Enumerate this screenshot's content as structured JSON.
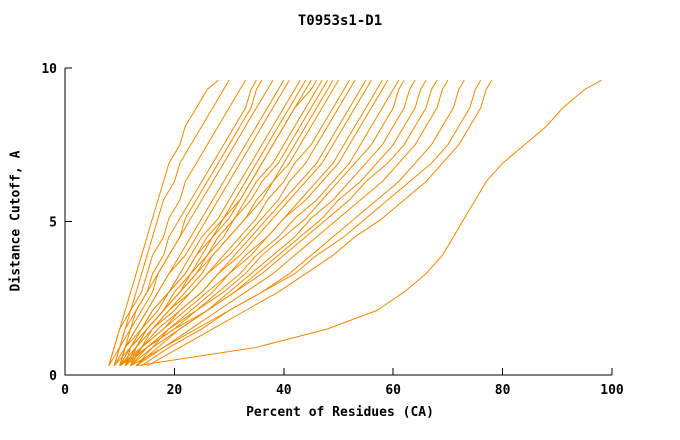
{
  "chart_data": {
    "type": "line",
    "title": "T0953s1-D1",
    "xlabel": "Percent of Residues (CA)",
    "ylabel": "Distance Cutoff, A",
    "xlim": [
      0,
      100
    ],
    "ylim": [
      0,
      10
    ],
    "x_ticks": [
      0,
      20,
      40,
      60,
      80,
      100
    ],
    "y_ticks": [
      0,
      5,
      10
    ],
    "grid": false,
    "legend": "none",
    "line_color": "#ef8a00",
    "axis_color": "#000000",
    "y_levels": [
      0.3,
      0.9,
      1.5,
      2.1,
      2.7,
      3.3,
      3.9,
      4.5,
      5.1,
      5.7,
      6.3,
      6.9,
      7.5,
      8.1,
      8.7,
      9.3,
      9.6
    ],
    "series": [
      [
        8,
        9,
        10,
        11,
        12,
        13,
        14,
        15,
        16,
        17,
        18,
        19,
        21,
        22,
        24,
        26,
        28
      ],
      [
        8,
        9,
        10,
        12,
        13,
        14,
        15,
        16,
        17,
        18,
        20,
        21,
        23,
        25,
        27,
        29,
        30
      ],
      [
        9,
        10,
        11,
        12,
        14,
        15,
        16,
        18,
        19,
        21,
        22,
        24,
        26,
        28,
        30,
        32,
        33
      ],
      [
        9,
        10,
        12,
        13,
        15,
        16,
        18,
        19,
        21,
        23,
        25,
        27,
        29,
        31,
        33,
        34,
        35
      ],
      [
        10,
        11,
        12,
        14,
        16,
        17,
        19,
        21,
        22,
        24,
        26,
        28,
        30,
        32,
        34,
        35,
        36
      ],
      [
        8,
        10,
        11,
        13,
        15,
        17,
        19,
        21,
        23,
        25,
        27,
        29,
        31,
        33,
        35,
        37,
        38
      ],
      [
        10,
        11,
        13,
        15,
        17,
        19,
        21,
        23,
        25,
        27,
        29,
        31,
        33,
        35,
        37,
        39,
        40
      ],
      [
        9,
        11,
        13,
        15,
        17,
        19,
        22,
        24,
        26,
        28,
        30,
        32,
        34,
        36,
        38,
        40,
        41
      ],
      [
        11,
        12,
        14,
        16,
        19,
        21,
        23,
        25,
        28,
        30,
        32,
        34,
        36,
        38,
        40,
        42,
        43
      ],
      [
        10,
        12,
        14,
        17,
        19,
        22,
        24,
        26,
        29,
        31,
        33,
        35,
        37,
        39,
        41,
        43,
        44
      ],
      [
        12,
        13,
        15,
        18,
        20,
        23,
        25,
        27,
        30,
        32,
        34,
        36,
        38,
        40,
        42,
        44,
        45
      ],
      [
        9,
        11,
        14,
        16,
        19,
        22,
        24,
        27,
        29,
        32,
        34,
        36,
        38,
        40,
        42,
        45,
        46
      ],
      [
        11,
        13,
        15,
        18,
        21,
        23,
        26,
        28,
        31,
        33,
        35,
        38,
        40,
        42,
        44,
        46,
        47
      ],
      [
        10,
        12,
        15,
        18,
        21,
        24,
        26,
        29,
        31,
        34,
        36,
        39,
        41,
        43,
        45,
        47,
        48
      ],
      [
        12,
        14,
        16,
        19,
        22,
        25,
        27,
        30,
        33,
        35,
        38,
        40,
        42,
        44,
        46,
        48,
        49
      ],
      [
        9,
        12,
        15,
        18,
        21,
        24,
        27,
        30,
        33,
        36,
        38,
        41,
        43,
        45,
        47,
        49,
        50
      ],
      [
        11,
        13,
        16,
        19,
        23,
        26,
        29,
        32,
        35,
        37,
        40,
        42,
        45,
        47,
        49,
        51,
        52
      ],
      [
        10,
        13,
        16,
        20,
        23,
        26,
        30,
        33,
        36,
        39,
        41,
        44,
        46,
        48,
        50,
        52,
        53
      ],
      [
        12,
        14,
        18,
        21,
        25,
        28,
        31,
        34,
        37,
        40,
        43,
        46,
        48,
        50,
        52,
        54,
        55
      ],
      [
        11,
        14,
        17,
        21,
        25,
        28,
        32,
        35,
        38,
        41,
        44,
        47,
        49,
        51,
        53,
        55,
        56
      ],
      [
        13,
        16,
        19,
        23,
        27,
        30,
        34,
        37,
        40,
        43,
        46,
        49,
        51,
        53,
        55,
        57,
        58
      ],
      [
        10,
        14,
        18,
        22,
        26,
        30,
        33,
        37,
        40,
        44,
        47,
        50,
        52,
        54,
        56,
        58,
        59
      ],
      [
        12,
        15,
        19,
        24,
        28,
        32,
        35,
        39,
        42,
        46,
        49,
        52,
        54,
        56,
        58,
        60,
        61
      ],
      [
        11,
        15,
        20,
        24,
        29,
        33,
        36,
        40,
        44,
        47,
        50,
        53,
        56,
        58,
        60,
        61,
        62
      ],
      [
        13,
        17,
        21,
        26,
        30,
        34,
        38,
        42,
        45,
        49,
        52,
        55,
        58,
        60,
        62,
        63,
        64
      ],
      [
        12,
        16,
        21,
        26,
        31,
        35,
        39,
        43,
        47,
        50,
        54,
        57,
        60,
        62,
        64,
        65,
        66
      ],
      [
        10,
        15,
        20,
        26,
        31,
        36,
        40,
        44,
        48,
        52,
        55,
        59,
        62,
        64,
        66,
        67,
        68
      ],
      [
        13,
        18,
        23,
        28,
        33,
        38,
        42,
        46,
        50,
        54,
        58,
        61,
        64,
        66,
        68,
        69,
        70
      ],
      [
        14,
        19,
        25,
        30,
        36,
        41,
        45,
        49,
        53,
        57,
        61,
        64,
        67,
        69,
        71,
        72,
        73
      ],
      [
        12,
        18,
        24,
        30,
        36,
        42,
        46,
        51,
        55,
        59,
        63,
        67,
        70,
        72,
        74,
        75,
        76
      ],
      [
        15,
        21,
        27,
        33,
        39,
        44,
        49,
        53,
        58,
        62,
        66,
        69,
        72,
        74,
        76,
        77,
        78
      ],
      [
        13,
        35,
        48,
        57,
        62,
        66,
        69,
        71,
        73,
        75,
        77,
        80,
        84,
        88,
        91,
        95,
        98
      ]
    ]
  }
}
